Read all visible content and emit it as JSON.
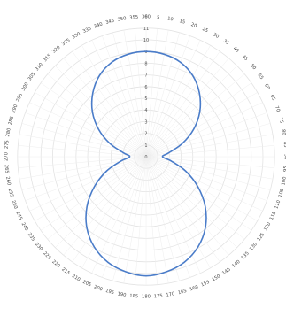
{
  "chart_data": {
    "type": "polar-line",
    "title": "",
    "angle_unit": "degrees",
    "angle_zero": "top",
    "angle_direction": "clockwise",
    "angle_tick_labels": [
      "0",
      "5",
      "10",
      "15",
      "20",
      "25",
      "30",
      "35",
      "40",
      "45",
      "50",
      "55",
      "60",
      "65",
      "70",
      "75",
      "80",
      "85",
      "90",
      "95",
      "100",
      "105",
      "110",
      "115",
      "120",
      "125",
      "130",
      "135",
      "140",
      "145",
      "150",
      "155",
      "160",
      "165",
      "170",
      "175",
      "180",
      "185",
      "190",
      "195",
      "200",
      "205",
      "210",
      "215",
      "220",
      "225",
      "230",
      "235",
      "240",
      "245",
      "250",
      "255",
      "260",
      "265",
      "270",
      "275",
      "280",
      "285",
      "290",
      "295",
      "300",
      "305",
      "310",
      "315",
      "320",
      "325",
      "330",
      "335",
      "340",
      "345",
      "350",
      "355",
      "360"
    ],
    "radial_ticks": [
      0,
      1,
      2,
      3,
      4,
      5,
      6,
      7,
      8,
      9,
      10,
      11
    ],
    "radial_range": [
      0,
      11
    ],
    "grid": true,
    "series": [
      {
        "color": "#4a7cc9",
        "theta": [
          0,
          10,
          20,
          30,
          40,
          50,
          60,
          70,
          80,
          90,
          100,
          110,
          120,
          130,
          140,
          150,
          160,
          170,
          180,
          190,
          200,
          210,
          220,
          230,
          240,
          250,
          260,
          270,
          280,
          290,
          300,
          310,
          320,
          330,
          340,
          350
        ],
        "r": [
          9.0,
          8.9,
          8.6,
          8.0,
          7.1,
          6.0,
          4.7,
          3.3,
          2.0,
          1.4,
          2.2,
          3.6,
          5.1,
          6.6,
          7.9,
          8.9,
          9.6,
          10.0,
          10.2,
          10.0,
          9.6,
          8.9,
          7.9,
          6.6,
          5.1,
          3.6,
          2.2,
          1.4,
          2.0,
          3.3,
          4.7,
          6.0,
          7.1,
          8.0,
          8.6,
          8.9
        ]
      }
    ]
  }
}
